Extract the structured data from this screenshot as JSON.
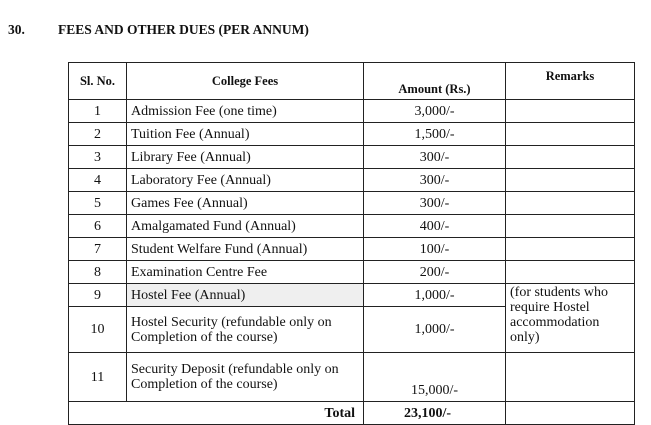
{
  "section": {
    "number": "30.",
    "title": "FEES AND OTHER DUES (PER ANNUM)"
  },
  "table": {
    "headers": [
      "Sl. No.",
      "College Fees",
      "Amount (Rs.)",
      "Remarks"
    ],
    "rows": [
      {
        "sl": "1",
        "fee": "Admission Fee (one time)",
        "amount": "3,000/-"
      },
      {
        "sl": "2",
        "fee": "Tuition Fee (Annual)",
        "amount": "1,500/-"
      },
      {
        "sl": "3",
        "fee": "Library Fee (Annual)",
        "amount": "300/-"
      },
      {
        "sl": "4",
        "fee": "Laboratory Fee (Annual)",
        "amount": "300/-"
      },
      {
        "sl": "5",
        "fee": "Games Fee (Annual)",
        "amount": "300/-"
      },
      {
        "sl": "6",
        "fee": "Amalgamated Fund (Annual)",
        "amount": "400/-"
      },
      {
        "sl": "7",
        "fee": "Student Welfare Fund (Annual)",
        "amount": "100/-"
      },
      {
        "sl": "8",
        "fee": "Examination Centre Fee",
        "amount": "200/-"
      },
      {
        "sl": "9",
        "fee": "Hostel Fee (Annual)",
        "amount": "1,000/-"
      },
      {
        "sl": "10",
        "fee": "Hostel Security (refundable only on Completion of the course)",
        "amount": "1,000/-"
      },
      {
        "sl": "11",
        "fee": "Security Deposit (refundable only on Completion of the course)",
        "amount": "15,000/-"
      }
    ],
    "hostel_remark": "(for students who require Hostel accommodation only)",
    "total_label": "Total",
    "total_amount": "23,100/-"
  }
}
